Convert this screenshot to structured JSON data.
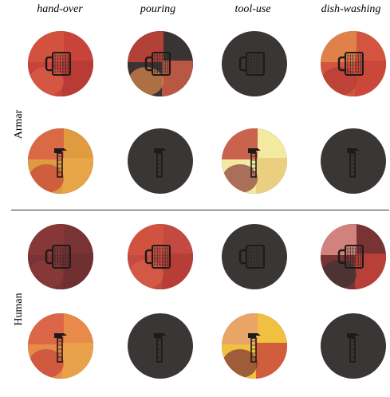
{
  "figure": {
    "columns": [
      "hand-over",
      "pouring",
      "tool-use",
      "dish-washing"
    ],
    "groups": [
      {
        "label": "Armar",
        "rows": [
          {
            "object": "mug-icon",
            "cells": [
              {
                "colors": [
                  "#c8443a",
                  "#d4553f",
                  "#b43a35",
                  "#d86048"
                ]
              },
              {
                "colors": [
                  "#3a3333",
                  "#c8443a",
                  "#d86048",
                  "#e08a4a"
                ]
              },
              {
                "colors": []
              },
              {
                "colors": [
                  "#d4553f",
                  "#e08a4a",
                  "#c8443a",
                  "#b43a35"
                ]
              }
            ]
          },
          {
            "object": "hammer-icon",
            "cells": [
              {
                "colors": [
                  "#e09a40",
                  "#d86048",
                  "#e8a848",
                  "#c8443a"
                ]
              },
              {
                "colors": []
              },
              {
                "colors": [
                  "#f3e9a0",
                  "#c24a40",
                  "#e8c878",
                  "#8a3a3a"
                ]
              },
              {
                "colors": []
              }
            ]
          }
        ]
      },
      {
        "label": "Human",
        "rows": [
          {
            "object": "mug-icon",
            "cells": [
              {
                "colors": [
                  "#7a3334",
                  "#8a3838",
                  "#6e2e30",
                  "#8a3a3a"
                ]
              },
              {
                "colors": [
                  "#c24a40",
                  "#d4553f",
                  "#b43a35",
                  "#d86048"
                ]
              },
              {
                "colors": []
              },
              {
                "colors": [
                  "#7a3334",
                  "#e0908a",
                  "#c8443a",
                  "#3a3333"
                ]
              }
            ]
          },
          {
            "object": "hammer-icon",
            "cells": [
              {
                "colors": [
                  "#e88a4a",
                  "#d86048",
                  "#e8a848",
                  "#c8443a"
                ]
              },
              {
                "colors": []
              },
              {
                "colors": [
                  "#f0c040",
                  "#e8a070",
                  "#c8443a",
                  "#7a3334"
                ]
              },
              {
                "colors": []
              }
            ]
          }
        ]
      }
    ],
    "empty_color": "#3a3636"
  }
}
